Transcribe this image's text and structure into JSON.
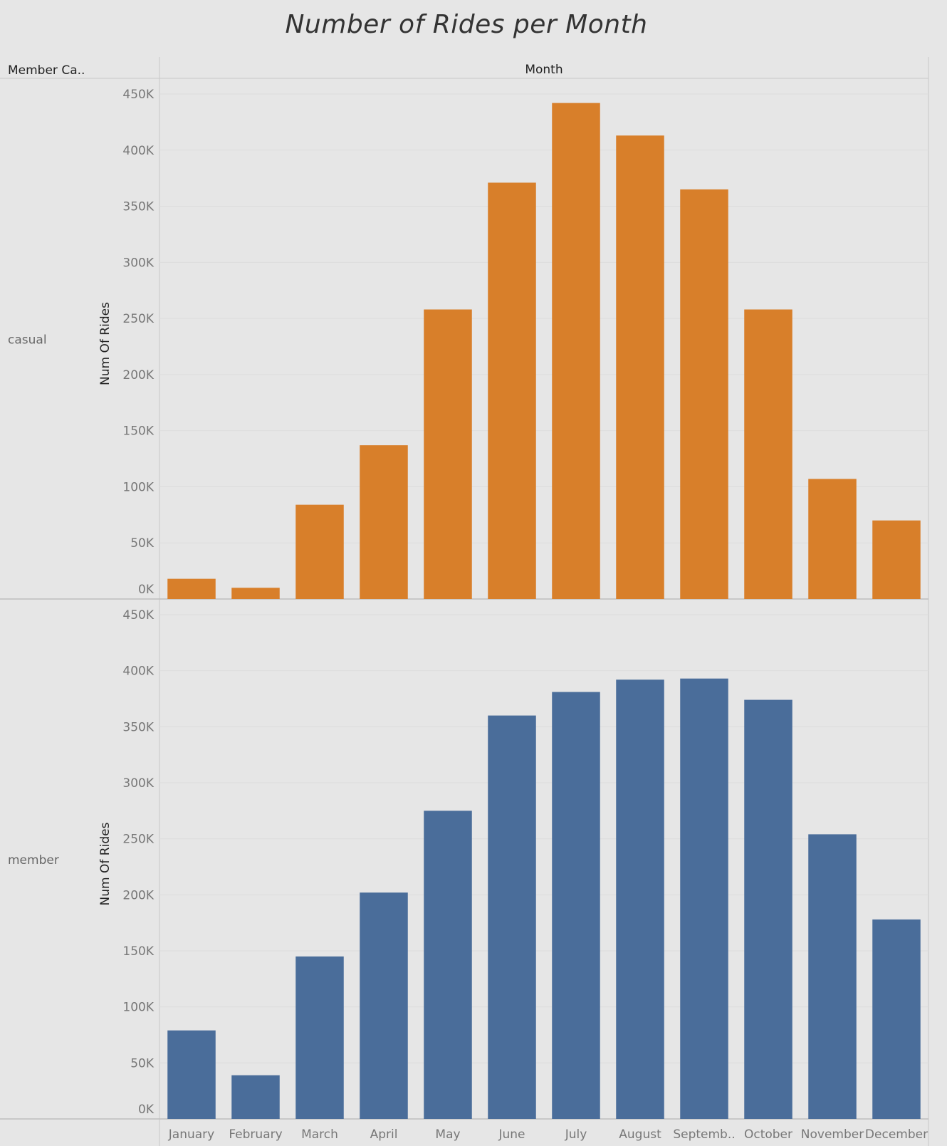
{
  "chart_data": {
    "type": "bar",
    "title": "Number of Rides per Month",
    "row_header": "Member Ca..",
    "column_header": "Month",
    "ylabel": "Num Of Rides",
    "xlabel": "",
    "categories": [
      "January",
      "February",
      "March",
      "April",
      "May",
      "June",
      "July",
      "August",
      "Septemb..",
      "October",
      "November",
      "December"
    ],
    "ylim": [
      0,
      450000
    ],
    "yticks": [
      0,
      50000,
      100000,
      150000,
      200000,
      250000,
      300000,
      350000,
      400000,
      450000
    ],
    "ytick_labels": [
      "0K",
      "50K",
      "100K",
      "150K",
      "200K",
      "250K",
      "300K",
      "350K",
      "400K",
      "450K"
    ],
    "grid": "horizontal",
    "series": [
      {
        "name": "casual",
        "color": "#d87f2a",
        "values": [
          18000,
          10000,
          84000,
          137000,
          258000,
          371000,
          442000,
          413000,
          365000,
          258000,
          107000,
          70000
        ]
      },
      {
        "name": "member",
        "color": "#4a6d9a",
        "values": [
          79000,
          39000,
          145000,
          202000,
          275000,
          360000,
          381000,
          392000,
          393000,
          374000,
          254000,
          178000
        ]
      }
    ]
  }
}
